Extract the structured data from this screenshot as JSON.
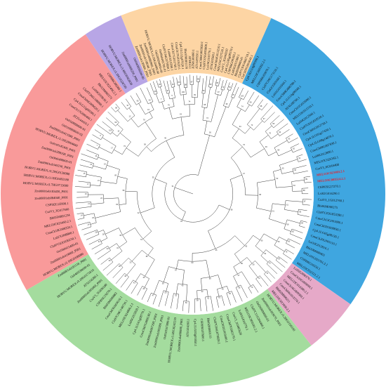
{
  "colors": {
    "orange": "#fdd5a4",
    "blue": "#3fa6e0",
    "pink": "#e6a9c8",
    "green": "#a4dc9e",
    "red": "#f99a9a",
    "purple": "#b8a6e6",
    "highlight": "#e8202a"
  },
  "clades": [
    {
      "name": "blue",
      "color": "#3fa6e0",
      "labels": [
        "Cp4.1LG14g09390.1",
        "MELO3C009392.2.1",
        "CSPI06G03970.1",
        "Cla97C09G173110.1",
        "ClaGCG03160.1",
        "Lsi01G010560.1",
        "CmoCh08G006780.1",
        "Cp4.1LG14g09340.1",
        "ATAG08760.1",
        "CmoCh11G013090.1",
        "MELO3C011510.1",
        "Lsi04G012500.1",
        "Cla97C01G018510.1",
        "CmaCh01G012750.1",
        "Cp4.1LG01g17430.1",
        "Cp4.1LG08g14870.1",
        "CmoCh09G007830.1",
        "Lsi06G012890.1",
        "MELO3C025342.1",
        "CsaV3_6G016400",
        "CSPI05G27270.1",
        "Lsi02G014290.1",
        "CsaV3_1G012760.1",
        "Bhi06M000275",
        "Cla97C03G053280.1",
        "CmoCh13G001880.1",
        "CmaCh02G008830.1",
        "Cp4.1LG05g08130.1",
        "CmoCh20G005110.1",
        "Lsi10G012810.1",
        "Bhi10M000403",
        "MELO3C025761.2.1",
        "CSPI06G16550.1",
        "MELO3C032321.2.1"
      ]
    },
    {
      "name": "pink",
      "color": "#e6a9c8",
      "labels": [
        "Lsi02G008370.1",
        "CmaCh16G009090.1",
        "MELO3C014380.2.1",
        "CmoCh16G009560.1",
        "CmoCh04G013570.1",
        "Bhi02M000211",
        "MELO3C023460.2.1"
      ]
    },
    {
      "name": "green",
      "color": "#a4dc9e",
      "labels": [
        "HORVU.MOREX.r3.2HG0159100",
        "Zm00001eb393070_P001",
        "Os02t0694000-01",
        "Cla97C11G206480.1",
        "MELO3C003581.2.1",
        "Lsi01G016770.1",
        "CsaV3_2G005620",
        "CmoCh07G002170.1",
        "CmaCh02G003080.1",
        "Cla97C04G078920.1",
        "Bhi02M000133",
        "CSPI06G07600.1",
        "Cp4.1LG02g01850.1",
        "AT1G04160.1",
        "Zm00001eb400800_P001",
        "HORVU.MOREX.r3.3HG0242210",
        "Os01t0167800-01",
        "Zm00001eb305980_P001",
        "Zm00001eb067290_P001",
        "CmoCh07G009530.1",
        "Cp4.1LG01g08770.1",
        "Lsi05G015020.1",
        "MELO3C024806.2.1",
        "Cla97C08G148730.1",
        "CmaCh03G003610.1",
        "Bhi03M000882",
        "CSPI03G19270.1",
        "CsaV3_5G036180",
        "Zm00001eb395060_P001",
        "AT5G54280.1",
        "HORVU.MOREX.r3.2HG0171810",
        "Os04t0538600-01",
        "Zm00001eb181110_P001"
      ]
    },
    {
      "name": "red",
      "color": "#f99a9a",
      "labels": [
        "HORVU.MOREX.r3.1HG0100080",
        "Zm00001eb419860_P001",
        "Os10t0415400-01",
        "Cla97C02G036250.1",
        "Lsi07G008800.1",
        "CmaCh19G008350.1",
        "MELO3C023450.2.1",
        "Bhi05M001234",
        "CsaV3_3G017860",
        "CSPI02G22990.1",
        "Zm00001eb084040_P001",
        "Zm00001eb183450_P001",
        "HORVU.MOREX.r3.7HG0713600",
        "HORVU.MOREX.r3.5HG0492180",
        "HORVU.MOREX.r3.2HG0120080",
        "Zm00001eb349230_P001",
        "Os06t0488000-01",
        "Zm00001eb288190_P001",
        "Os01t0145300_P001",
        "HORVU.MOREX.r3.1HG0064660",
        "Zm00001eb413580_P001",
        "Os01t0888600-02",
        "Os01t0888600-01",
        "AT2G44410.1",
        "CmoCh17G000460.1",
        "Cp4.1LG12g00390.1",
        "CmoCh06G009020.1",
        "Cla97C06G108000.1",
        "Lsi09G018030.1",
        "Bhi12M002271",
        "MELO3C022406.2.1",
        "CSPI06G00260.1"
      ]
    },
    {
      "name": "purple",
      "color": "#b8a6e6",
      "labels": [
        "HORVU.MOREX.r3.3HG0326700",
        "HORVU.MOREX.r3.4HG0362830",
        "Zm00001eb068250_P001",
        "Os03t0609200-00"
      ]
    },
    {
      "name": "orange",
      "color": "#fdd5a4",
      "labels": [
        "Zm00001eb130960_P001",
        "Zm00001eb158040_P001",
        "Zm00001eb080960_P001",
        "HORVU.MOREX.r3.5HG0498140",
        "Os02t0694900-00",
        "Os09t0445700-01",
        "Cla97C04G075890.1",
        "Lsi04G012280.1",
        "CmoCh17G011760.1",
        "CmaCh17G010520.1",
        "Cp4.1LG12g07020.1",
        "Bhi10M001170",
        "ATMG0.1",
        "ATMG00860.1",
        "AT1G09550.1",
        "CmoCh06G003950.1",
        "Cla97C05G093800.1",
        "Lsi10G010770.1",
        "AT5G03560.1",
        "CmaCh04G013210.1",
        "MELO3C027530.1",
        "CsaV3_3G044250",
        "Cp4.1LG05g09370.1",
        "CSPI06G08160.1",
        "Lsi03G015300.1",
        "Bhi03M000145",
        "Cla97C03G066710.1",
        "ClaCh05G003640.1"
      ]
    }
  ],
  "highlighted_labels": [
    "MELO3C023403.2.1",
    "MELO3C003514.2.1"
  ],
  "bootstrap_values": [
    "100",
    "99",
    "98",
    "97",
    "95",
    "94",
    "93",
    "92",
    "91",
    "90",
    "89",
    "88",
    "87",
    "85",
    "84",
    "82",
    "80",
    "79",
    "78",
    "76",
    "74",
    "72",
    "70",
    "68",
    "65",
    "63",
    "61",
    "58",
    "56",
    "53",
    "50",
    "47",
    "45",
    "42",
    "40",
    "38",
    "35",
    "33",
    "31",
    "28",
    "26",
    "24",
    "21",
    "19",
    "17",
    "15",
    "12",
    "10",
    "7",
    "5"
  ]
}
